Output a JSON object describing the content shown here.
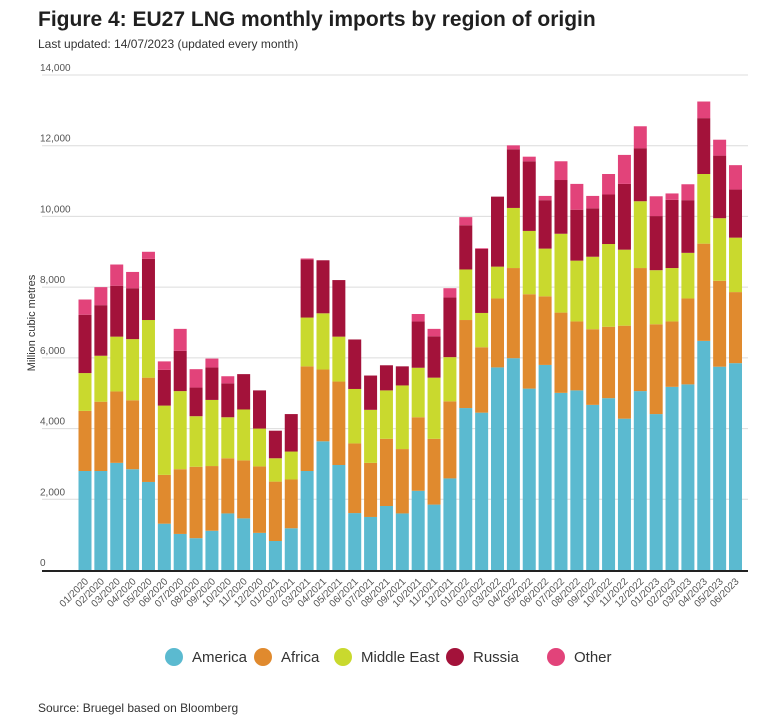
{
  "chart_data": {
    "type": "bar",
    "stacked": true,
    "title": "Figure 4: EU27 LNG monthly imports by region of origin",
    "subtitle": "Last updated: 14/07/2023 (updated every month)",
    "source": "Source: Bruegel based on Bloomberg",
    "ylabel": "Million cubic metres",
    "xlabel": "",
    "ylim": [
      0,
      14000
    ],
    "yticks": [
      0,
      2000,
      4000,
      6000,
      8000,
      10000,
      12000,
      14000
    ],
    "ytick_labels": [
      "0",
      "2,000",
      "4,000",
      "6,000",
      "8,000",
      "10,000",
      "12,000",
      "14,000"
    ],
    "grid": true,
    "legend_placement": "bottom",
    "categories": [
      "01/2020",
      "02/2020",
      "03/2020",
      "04/2020",
      "05/2020",
      "06/2020",
      "07/2020",
      "08/2020",
      "09/2020",
      "10/2020",
      "11/2020",
      "12/2020",
      "01/2021",
      "02/2021",
      "03/2021",
      "04/2021",
      "05/2021",
      "06/2021",
      "07/2021",
      "08/2021",
      "09/2021",
      "10/2021",
      "11/2021",
      "12/2021",
      "01/2022",
      "02/2022",
      "03/2022",
      "04/2022",
      "05/2022",
      "06/2022",
      "07/2022",
      "08/2022",
      "09/2022",
      "10/2022",
      "11/2022",
      "12/2022",
      "01/2023",
      "02/2023",
      "03/2023",
      "04/2023",
      "05/2023",
      "06/2023"
    ],
    "series": [
      {
        "name": "America",
        "color": "#5bbad0",
        "values": [
          2800,
          2800,
          3030,
          2850,
          2490,
          1310,
          1020,
          900,
          1110,
          1600,
          1460,
          1050,
          820,
          1180,
          2800,
          3640,
          2970,
          1610,
          1500,
          1810,
          1600,
          2240,
          1850,
          2590,
          4580,
          4450,
          5730,
          5990,
          5130,
          5800,
          5010,
          5080,
          4670,
          4860,
          4280,
          5060,
          4410,
          5180,
          5250,
          6480,
          5750,
          5850
        ]
      },
      {
        "name": "Africa",
        "color": "#e08a2e",
        "values": [
          1700,
          1960,
          2020,
          1950,
          2950,
          1380,
          1830,
          2020,
          1830,
          1560,
          1640,
          1880,
          1680,
          1380,
          2960,
          2030,
          2360,
          1970,
          1530,
          1900,
          1820,
          2080,
          1860,
          2180,
          2490,
          1850,
          1950,
          2550,
          2670,
          1940,
          2270,
          1950,
          2140,
          2020,
          2630,
          3480,
          2540,
          1850,
          2430,
          2750,
          2430,
          2010
        ]
      },
      {
        "name": "Middle East",
        "color": "#c9d92e",
        "values": [
          1070,
          1300,
          1550,
          1730,
          1630,
          1960,
          2210,
          1430,
          1870,
          1160,
          1440,
          1070,
          660,
          790,
          1380,
          1590,
          1270,
          1540,
          1500,
          1370,
          1800,
          1400,
          1730,
          1250,
          1430,
          970,
          900,
          1700,
          1790,
          1350,
          2230,
          1720,
          2050,
          2340,
          2150,
          1890,
          1530,
          1510,
          1290,
          1970,
          1770,
          1540
        ]
      },
      {
        "name": "Russia",
        "color": "#a3123a",
        "values": [
          1650,
          1430,
          1440,
          1440,
          1730,
          1010,
          1140,
          810,
          920,
          960,
          1000,
          1080,
          780,
          1060,
          1640,
          1500,
          1600,
          1400,
          970,
          710,
          540,
          1310,
          1170,
          1690,
          1250,
          1810,
          1980,
          1660,
          1970,
          1370,
          1520,
          1440,
          1370,
          1400,
          1860,
          1500,
          1530,
          1930,
          1490,
          1580,
          1770,
          1360
        ]
      },
      {
        "name": "Other",
        "color": "#e2437a",
        "values": [
          430,
          510,
          600,
          460,
          200,
          240,
          620,
          520,
          250,
          200,
          0,
          0,
          0,
          0,
          30,
          0,
          0,
          0,
          0,
          0,
          0,
          210,
          210,
          260,
          230,
          20,
          0,
          110,
          130,
          120,
          530,
          730,
          350,
          580,
          820,
          620,
          560,
          180,
          450,
          470,
          450,
          690
        ]
      }
    ]
  }
}
